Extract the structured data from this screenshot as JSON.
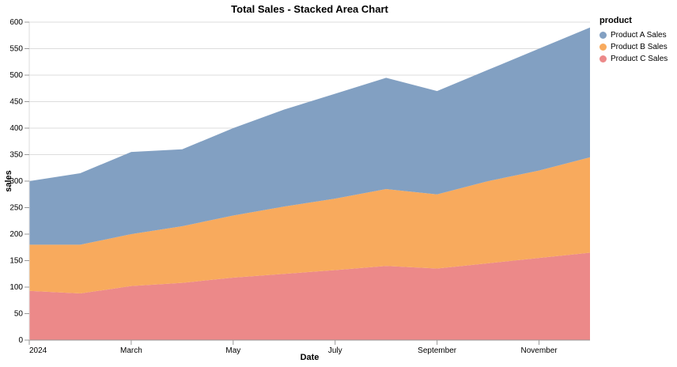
{
  "title": "Total Sales - Stacked Area Chart",
  "colors": {
    "background": "#ffffff",
    "grid": "#dddddd",
    "axis": "#999999",
    "text": "#000000",
    "product_a": "#82a0c2",
    "product_b": "#f8aa5d",
    "product_c": "#ec8989"
  },
  "chart_data": {
    "type": "area",
    "stacked": true,
    "title": "Total Sales - Stacked Area Chart",
    "xlabel": "Date",
    "ylabel": "sales",
    "ylim": [
      0,
      600
    ],
    "ytick_step": 50,
    "grid": true,
    "legend_title": "product",
    "legend_position": "top-right-outside",
    "x": [
      "2024-01",
      "2024-02",
      "2024-03",
      "2024-04",
      "2024-05",
      "2024-06",
      "2024-07",
      "2024-08",
      "2024-09",
      "2024-10",
      "2024-11",
      "2024-12"
    ],
    "x_tick_labels": [
      {
        "index": 0,
        "label": "2024"
      },
      {
        "index": 2,
        "label": "March"
      },
      {
        "index": 4,
        "label": "May"
      },
      {
        "index": 6,
        "label": "July"
      },
      {
        "index": 8,
        "label": "September"
      },
      {
        "index": 10,
        "label": "November"
      }
    ],
    "series": [
      {
        "name": "Product A Sales",
        "color": "#82a0c2",
        "values": [
          120,
          135,
          155,
          145,
          165,
          183,
          198,
          210,
          195,
          210,
          230,
          245
        ]
      },
      {
        "name": "Product B Sales",
        "color": "#f8aa5d",
        "values": [
          87,
          92,
          98,
          107,
          117,
          127,
          135,
          145,
          140,
          155,
          165,
          180
        ]
      },
      {
        "name": "Product C Sales",
        "color": "#ec8989",
        "values": [
          93,
          88,
          102,
          108,
          118,
          125,
          132,
          140,
          135,
          145,
          155,
          165
        ]
      }
    ],
    "stack_order_bottom_to_top": [
      "Product C Sales",
      "Product B Sales",
      "Product A Sales"
    ],
    "stacked_totals": [
      300,
      315,
      355,
      360,
      400,
      435,
      465,
      495,
      470,
      510,
      550,
      590
    ]
  }
}
